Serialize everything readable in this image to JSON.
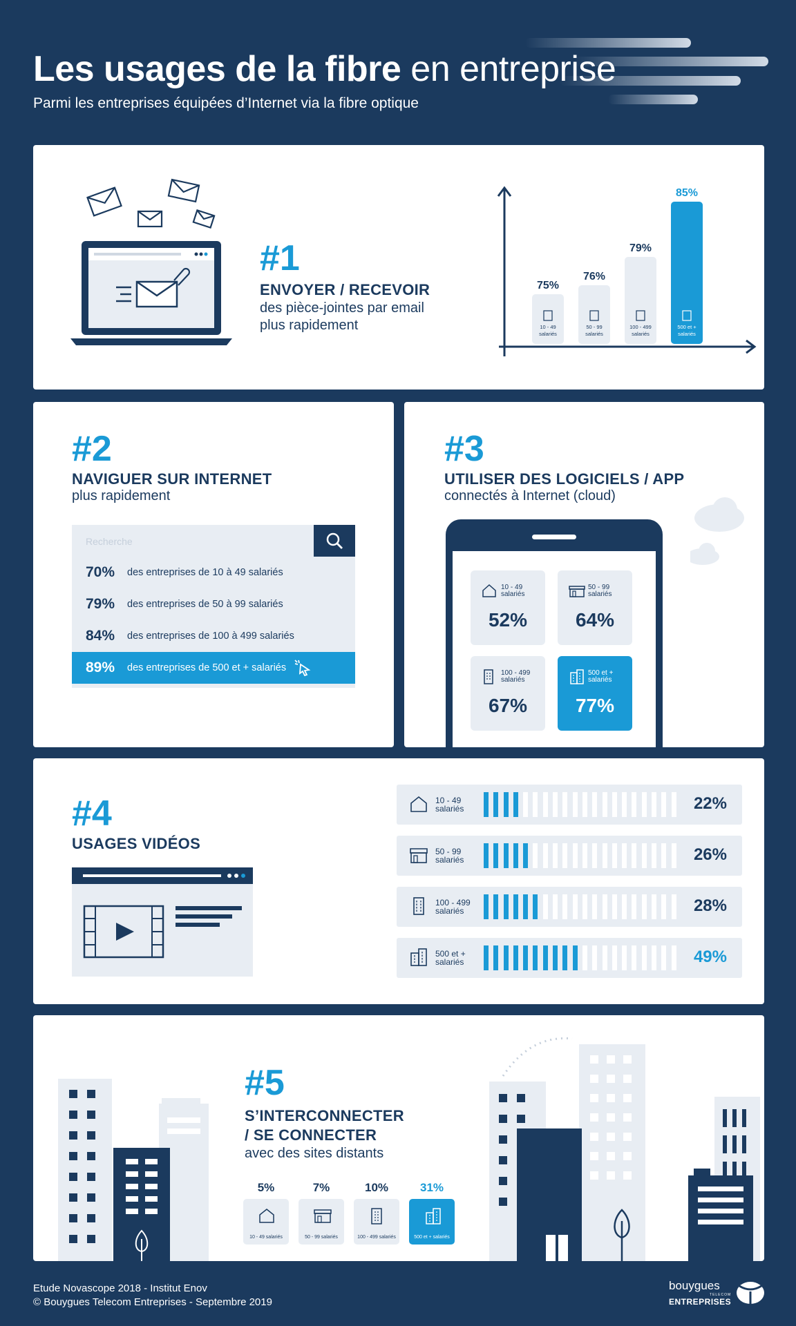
{
  "header": {
    "title_bold": "Les usages de la fibre",
    "title_light": "en entreprise",
    "subtitle": "Parmi les entreprises équipées d’Internet via la fibre optique"
  },
  "colors": {
    "navy": "#1b3a5e",
    "accent": "#1a9ad6",
    "light": "#e8edf3"
  },
  "usage1": {
    "rank": "#1",
    "heading": "ENVOYER / RECEVOIR",
    "desc_line1": "des pièce-jointes par email",
    "desc_line2": "plus rapidement"
  },
  "usage2": {
    "rank": "#2",
    "heading": "NAVIGUER SUR INTERNET",
    "desc": "plus rapidement",
    "search_placeholder": "Recherche",
    "rows": [
      {
        "pct": "70%",
        "label": "des entreprises de 10 à 49 salariés"
      },
      {
        "pct": "79%",
        "label": "des entreprises de 50 à 99 salariés"
      },
      {
        "pct": "84%",
        "label": "des entreprises de 100 à 499 salariés"
      },
      {
        "pct": "89%",
        "label": "des entreprises de 500 et + salariés"
      }
    ]
  },
  "usage3": {
    "rank": "#3",
    "heading": "UTILISER DES LOGICIELS / APP",
    "desc": "connectés à Internet (cloud)",
    "tiles": [
      {
        "line1": "10 - 49",
        "line2": "salariés",
        "value": "52%"
      },
      {
        "line1": "50 - 99",
        "line2": "salariés",
        "value": "64%"
      },
      {
        "line1": "100 - 499",
        "line2": "salariés",
        "value": "67%"
      },
      {
        "line1": "500 et +",
        "line2": "salariés",
        "value": "77%"
      }
    ]
  },
  "usage4": {
    "rank": "#4",
    "heading": "USAGES VIDÉOS",
    "rows": [
      {
        "line1": "10 - 49",
        "line2": "salariés",
        "value": "22%"
      },
      {
        "line1": "50 - 99",
        "line2": "salariés",
        "value": "26%"
      },
      {
        "line1": "100 - 499",
        "line2": "salariés",
        "value": "28%"
      },
      {
        "line1": "500 et +",
        "line2": "salariés",
        "value": "49%"
      }
    ]
  },
  "usage5": {
    "rank": "#5",
    "heading_line1": "S’INTERCONNECTER",
    "heading_line2": "/ SE CONNECTER",
    "desc": "avec des sites distants",
    "cards": [
      {
        "value": "5%",
        "label": "10 - 49 salariés"
      },
      {
        "value": "7%",
        "label": "50 - 99 salariés"
      },
      {
        "value": "10%",
        "label": "100 - 499 salariés"
      },
      {
        "value": "31%",
        "label": "500 et + salariés"
      }
    ]
  },
  "footer": {
    "line1": "Etude Novascope 2018 - Institut Enov",
    "line2": "© Bouygues Telecom Entreprises - Septembre 2019",
    "brand1": "bouygues",
    "brand_small": "TELECOM",
    "brand2": "ENTREPRISES"
  },
  "chart_data": [
    {
      "type": "bar",
      "categories": [
        "10 - 49 salariés",
        "50 - 99 salariés",
        "100 - 499 salariés",
        "500 et + salariés"
      ],
      "values": [
        75,
        76,
        79,
        85
      ],
      "value_labels": [
        "75%",
        "76%",
        "79%",
        "85%"
      ],
      "cat_line1": [
        "10 - 49",
        "50 - 99",
        "100 - 499",
        "500 et +"
      ],
      "cat_line2": [
        "salariés",
        "salariés",
        "salariés",
        "salariés"
      ],
      "highlight_index": 3,
      "ylim": [
        0,
        100
      ]
    },
    {
      "type": "bar",
      "categories": [
        "10 - 49 salariés",
        "50 - 99 salariés",
        "100 - 499 salariés",
        "500 et + salariés"
      ],
      "values": [
        22,
        26,
        28,
        49
      ],
      "highlight_index": 3
    }
  ]
}
